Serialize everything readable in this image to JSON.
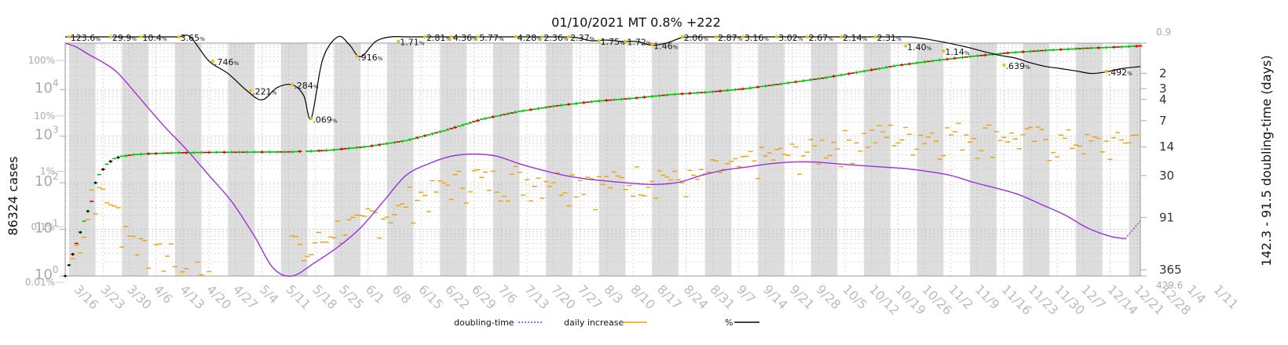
{
  "chart_data": {
    "type": "line",
    "title": "01/10/2021 MT 0.8% +222",
    "ylabel_left": "86324 cases",
    "ylabel_right": "142.3 - 91.5 doubling-time (days)",
    "x_ticks": [
      "3/16",
      "3/23",
      "3/30",
      "4/6",
      "4/13",
      "4/20",
      "4/27",
      "5/4",
      "5/11",
      "5/18",
      "5/25",
      "6/1",
      "6/8",
      "6/15",
      "6/22",
      "6/29",
      "7/6",
      "7/13",
      "7/20",
      "7/27",
      "8/3",
      "8/10",
      "8/17",
      "8/24",
      "8/31",
      "9/7",
      "9/14",
      "9/21",
      "9/28",
      "10/5",
      "10/12",
      "10/19",
      "10/26",
      "11/2",
      "11/9",
      "11/16",
      "11/23",
      "11/30",
      "12/7",
      "12/14",
      "12/21",
      "12/28",
      "1/4",
      "1/11"
    ],
    "y_left_ticks": [
      {
        "label": "10",
        "exp": "0",
        "value": 1
      },
      {
        "label": "10",
        "exp": "1",
        "value": 10
      },
      {
        "label": "10",
        "exp": "2",
        "value": 100
      },
      {
        "label": "10",
        "exp": "3",
        "value": 1000
      },
      {
        "label": "10",
        "exp": "4",
        "value": 10000
      }
    ],
    "y_left_pct_ticks": [
      {
        "label": "0.01%",
        "value": 0.0001
      },
      {
        "label": "0.1%",
        "value": 0.001
      },
      {
        "label": "1%",
        "value": 0.01
      },
      {
        "label": "10%",
        "value": 0.1
      },
      {
        "label": "100%",
        "value": 1
      }
    ],
    "y_right_ticks": [
      {
        "label": "0.9",
        "value": 0.9
      },
      {
        "label": "2",
        "value": 2
      },
      {
        "label": "3",
        "value": 3
      },
      {
        "label": "4",
        "value": 4
      },
      {
        "label": "7",
        "value": 7
      },
      {
        "label": "14",
        "value": 14
      },
      {
        "label": "30",
        "value": 30
      },
      {
        "label": "91",
        "value": 91
      },
      {
        "label": "365",
        "value": 365
      },
      {
        "label": "429.6",
        "value": 429.6
      }
    ],
    "cases_series": {
      "name": "cases",
      "points": [
        [
          0,
          1
        ],
        [
          3,
          5
        ],
        [
          5,
          15
        ],
        [
          7,
          40
        ],
        [
          8,
          100
        ],
        [
          9,
          150
        ],
        [
          11,
          250
        ],
        [
          13,
          330
        ],
        [
          15,
          370
        ],
        [
          18,
          400
        ],
        [
          22,
          420
        ],
        [
          30,
          440
        ],
        [
          40,
          450
        ],
        [
          50,
          455
        ],
        [
          60,
          460
        ],
        [
          62,
          470
        ],
        [
          66,
          480
        ],
        [
          70,
          500
        ],
        [
          80,
          600
        ],
        [
          90,
          800
        ],
        [
          100,
          1300
        ],
        [
          110,
          2300
        ],
        [
          120,
          3400
        ],
        [
          130,
          4500
        ],
        [
          140,
          5600
        ],
        [
          150,
          6500
        ],
        [
          160,
          7800
        ],
        [
          170,
          8800
        ],
        [
          180,
          10500
        ],
        [
          190,
          13500
        ],
        [
          200,
          17500
        ],
        [
          210,
          24000
        ],
        [
          220,
          33000
        ],
        [
          230,
          42000
        ],
        [
          240,
          52000
        ],
        [
          250,
          62000
        ],
        [
          260,
          70000
        ],
        [
          270,
          77000
        ],
        [
          280,
          83000
        ],
        [
          284,
          86324
        ]
      ]
    },
    "pct_series": {
      "name": "%",
      "points": [
        [
          0,
          200
        ],
        [
          2,
          100
        ],
        [
          4,
          55
        ],
        [
          6,
          48
        ],
        [
          8,
          40
        ],
        [
          10,
          35
        ],
        [
          12,
          36
        ],
        [
          14,
          30
        ],
        [
          17,
          22
        ],
        [
          20,
          11
        ],
        [
          25,
          6
        ],
        [
          30,
          3.6
        ],
        [
          33,
          2.2
        ],
        [
          38,
          0.75
        ],
        [
          43,
          0.45
        ],
        [
          48,
          0.22
        ],
        [
          52,
          0.15
        ],
        [
          56,
          0.25
        ],
        [
          60,
          0.28
        ],
        [
          63,
          0.18
        ],
        [
          65,
          0.07
        ],
        [
          68,
          0.8
        ],
        [
          72,
          2.5
        ],
        [
          75,
          1.5
        ],
        [
          78,
          0.9
        ],
        [
          82,
          1.7
        ],
        [
          86,
          2.5
        ],
        [
          90,
          2.8
        ],
        [
          94,
          3.2
        ],
        [
          98,
          4.4
        ],
        [
          103,
          5.5
        ],
        [
          107,
          5.8
        ],
        [
          111,
          4.7
        ],
        [
          115,
          4.3
        ],
        [
          119,
          3.0
        ],
        [
          123,
          2.4
        ],
        [
          127,
          2.3
        ],
        [
          131,
          2.4
        ],
        [
          135,
          2.0
        ],
        [
          139,
          1.75
        ],
        [
          143,
          1.8
        ],
        [
          147,
          1.7
        ],
        [
          151,
          1.7
        ],
        [
          155,
          1.45
        ],
        [
          159,
          1.6
        ],
        [
          163,
          2.0
        ],
        [
          167,
          2.1
        ],
        [
          171,
          2.4
        ],
        [
          175,
          2.9
        ],
        [
          179,
          3.4
        ],
        [
          183,
          3.2
        ],
        [
          187,
          3.1
        ],
        [
          191,
          3.0
        ],
        [
          195,
          2.9
        ],
        [
          199,
          2.7
        ],
        [
          203,
          2.7
        ],
        [
          207,
          2.5
        ],
        [
          211,
          2.3
        ],
        [
          215,
          2.3
        ],
        [
          219,
          2.5
        ],
        [
          223,
          2.4
        ],
        [
          227,
          1.9
        ],
        [
          231,
          1.7
        ],
        [
          235,
          1.5
        ],
        [
          239,
          1.3
        ],
        [
          243,
          1.1
        ],
        [
          247,
          0.95
        ],
        [
          251,
          0.85
        ],
        [
          255,
          0.7
        ],
        [
          259,
          0.6
        ],
        [
          263,
          0.55
        ],
        [
          267,
          0.5
        ],
        [
          271,
          0.45
        ],
        [
          275,
          0.48
        ],
        [
          279,
          0.55
        ],
        [
          284,
          0.6
        ]
      ]
    },
    "doubling_series": {
      "name": "doubling-time",
      "points": [
        [
          0,
          0.9
        ],
        [
          3,
          1.0
        ],
        [
          6,
          1.2
        ],
        [
          10,
          1.5
        ],
        [
          14,
          2
        ],
        [
          20,
          4
        ],
        [
          26,
          8
        ],
        [
          32,
          15
        ],
        [
          38,
          30
        ],
        [
          44,
          60
        ],
        [
          50,
          150
        ],
        [
          55,
          350
        ],
        [
          60,
          429
        ],
        [
          66,
          300
        ],
        [
          72,
          200
        ],
        [
          78,
          120
        ],
        [
          84,
          60
        ],
        [
          90,
          30
        ],
        [
          96,
          22
        ],
        [
          102,
          18
        ],
        [
          108,
          17
        ],
        [
          114,
          18
        ],
        [
          120,
          22
        ],
        [
          126,
          26
        ],
        [
          132,
          30
        ],
        [
          138,
          33
        ],
        [
          144,
          35
        ],
        [
          150,
          37
        ],
        [
          156,
          38
        ],
        [
          162,
          36
        ],
        [
          168,
          30
        ],
        [
          174,
          26
        ],
        [
          180,
          24
        ],
        [
          186,
          22
        ],
        [
          192,
          21
        ],
        [
          198,
          21
        ],
        [
          204,
          22
        ],
        [
          210,
          23
        ],
        [
          216,
          24
        ],
        [
          222,
          25
        ],
        [
          228,
          27
        ],
        [
          234,
          30
        ],
        [
          240,
          36
        ],
        [
          246,
          42
        ],
        [
          252,
          50
        ],
        [
          258,
          65
        ],
        [
          264,
          85
        ],
        [
          270,
          120
        ],
        [
          276,
          150
        ],
        [
          280,
          160
        ],
        [
          284,
          100
        ]
      ]
    },
    "annotations": [
      {
        "x": 1,
        "y": 180,
        "text": "123.6",
        "unit": "%"
      },
      {
        "x": 12,
        "y": 50,
        "text": "29.9",
        "unit": "%"
      },
      {
        "x": 20,
        "y": 11,
        "text": "10.4",
        "unit": "%"
      },
      {
        "x": 30,
        "y": 3.65,
        "text": "3.65",
        "unit": "%"
      },
      {
        "x": 39,
        "y": 0.746,
        "text": ".746",
        "unit": "%"
      },
      {
        "x": 49,
        "y": 0.221,
        "text": ".221",
        "unit": "%"
      },
      {
        "x": 60,
        "y": 0.284,
        "text": ".284",
        "unit": "%"
      },
      {
        "x": 65,
        "y": 0.069,
        "text": ".069",
        "unit": "%"
      },
      {
        "x": 77,
        "y": 0.916,
        "text": ".916",
        "unit": "%"
      },
      {
        "x": 88,
        "y": 1.71,
        "text": "1.71",
        "unit": "%"
      },
      {
        "x": 95,
        "y": 2.81,
        "text": "2.81",
        "unit": "%"
      },
      {
        "x": 102,
        "y": 4.36,
        "text": "4.36",
        "unit": "%"
      },
      {
        "x": 109,
        "y": 5.77,
        "text": "5.77",
        "unit": "%"
      },
      {
        "x": 119,
        "y": 4.28,
        "text": "4.28",
        "unit": "%"
      },
      {
        "x": 126,
        "y": 2.36,
        "text": "2.36",
        "unit": "%"
      },
      {
        "x": 133,
        "y": 2.37,
        "text": "2.37",
        "unit": "%"
      },
      {
        "x": 141,
        "y": 1.75,
        "text": "1.75",
        "unit": "%"
      },
      {
        "x": 148,
        "y": 1.72,
        "text": "1.72",
        "unit": "%"
      },
      {
        "x": 155,
        "y": 1.46,
        "text": "1.46",
        "unit": "%"
      },
      {
        "x": 163,
        "y": 2.06,
        "text": "2.06",
        "unit": "%"
      },
      {
        "x": 172,
        "y": 2.87,
        "text": "2.87",
        "unit": "%"
      },
      {
        "x": 179,
        "y": 3.16,
        "text": "3.16",
        "unit": "%"
      },
      {
        "x": 188,
        "y": 3.02,
        "text": "3.02",
        "unit": "%"
      },
      {
        "x": 196,
        "y": 2.67,
        "text": "2.67",
        "unit": "%"
      },
      {
        "x": 205,
        "y": 2.14,
        "text": "2.14",
        "unit": "%"
      },
      {
        "x": 214,
        "y": 2.31,
        "text": "2.31",
        "unit": "%"
      },
      {
        "x": 222,
        "y": 1.4,
        "text": "1.40",
        "unit": "%"
      },
      {
        "x": 232,
        "y": 1.14,
        "text": "1.14",
        "unit": "%"
      },
      {
        "x": 248,
        "y": 0.639,
        "text": ".639",
        "unit": "%"
      },
      {
        "x": 275,
        "y": 0.492,
        "text": ".492",
        "unit": "%"
      }
    ],
    "legend": {
      "placement": "bottom",
      "entries": [
        {
          "name": "doubling-time",
          "color": "#9b30d9",
          "style": "dotted"
        },
        {
          "name": "daily increase",
          "color": "#f0a000",
          "style": "solid"
        },
        {
          "name": "%",
          "color": "#000000",
          "style": "solid"
        }
      ]
    },
    "colors": {
      "pct_line": "#000000",
      "doubling": "#9b30d9",
      "cases_green": "#00c000",
      "cases_red": "#cc0000",
      "daily": "#f0a000",
      "stripe": "#dddddd",
      "grid": "#bbbbbb"
    },
    "grid": true
  }
}
